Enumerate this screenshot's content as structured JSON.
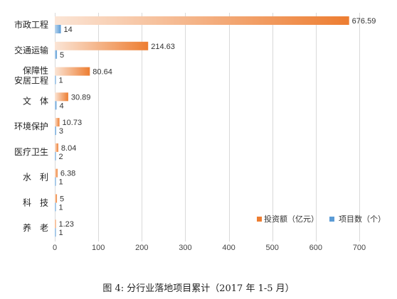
{
  "chart_data": {
    "type": "bar",
    "orientation": "horizontal",
    "categories": [
      "市政工程",
      "交通运输",
      "保障性\n安居工程",
      "文　体",
      "环境保护",
      "医疗卫生",
      "水　利",
      "科　技",
      "养　老"
    ],
    "series": [
      {
        "name": "投资额（亿元）",
        "values": [
          676.59,
          214.63,
          80.64,
          30.89,
          10.73,
          8.04,
          6.38,
          5,
          1.23
        ],
        "labels": [
          "676.59",
          "214.63",
          "80.64",
          "30.89",
          "10.73",
          "8.04",
          "6.38",
          "5",
          "1.23"
        ],
        "color": "#ED7D31"
      },
      {
        "name": "项目数（个）",
        "values": [
          14,
          5,
          1,
          4,
          3,
          2,
          1,
          1,
          1
        ],
        "labels": [
          "14",
          "5",
          "1",
          "4",
          "3",
          "2",
          "1",
          "1",
          "1"
        ],
        "color": "#5B9BD5"
      }
    ],
    "xlim": [
      0,
      700
    ],
    "xticks": [
      0,
      100,
      200,
      300,
      400,
      500,
      600,
      700
    ],
    "grid": "vertical",
    "legend": "bottom-right",
    "title": "",
    "xlabel": "",
    "ylabel": ""
  },
  "caption": "图 4: 分行业落地项目累计（2017 年 1-5 月）"
}
